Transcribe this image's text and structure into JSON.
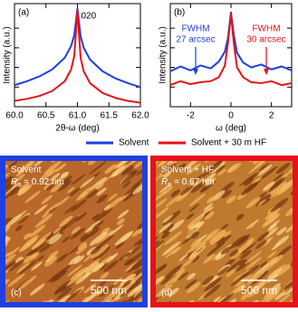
{
  "chart_data": [
    {
      "type": "line",
      "panel_label": "(a)",
      "annotation": "020",
      "x_label": "2θ-ω (deg)",
      "y_label": "Intensity (a.u.)",
      "x": [
        60.0,
        60.2,
        60.4,
        60.6,
        60.8,
        60.9,
        60.95,
        61.0,
        61.05,
        61.1,
        61.2,
        61.4,
        61.6,
        61.8,
        62.0
      ],
      "series": [
        {
          "name": "Solvent",
          "color": "#1f3fe0",
          "values": [
            2.2,
            2.6,
            3.1,
            3.8,
            5.0,
            6.2,
            7.3,
            10,
            7.2,
            6.0,
            4.8,
            3.6,
            2.9,
            2.4,
            2.0
          ]
        },
        {
          "name": "Solvent + 30 m HF",
          "color": "#e8101a",
          "values": [
            0.6,
            0.8,
            1.1,
            1.6,
            2.6,
            3.8,
            5.2,
            9.8,
            5.0,
            3.6,
            2.4,
            1.4,
            0.9,
            0.6,
            0.4
          ]
        }
      ],
      "xlim": [
        60.0,
        62.0
      ],
      "xticks": [
        {
          "value": 60,
          "label": "60.0"
        },
        60.5,
        {
          "value": 61,
          "label": "61.0"
        },
        61.5,
        {
          "value": 62,
          "label": "62.0"
        }
      ],
      "ylim": [
        0,
        10.5
      ],
      "yticks": [
        2,
        4,
        6,
        8
      ]
    },
    {
      "type": "line",
      "panel_label": "(b)",
      "x_label": "ω (deg)",
      "y_label": "Intensity (a.u.)",
      "x": [
        -3,
        -2.5,
        -2,
        -1.5,
        -1,
        -0.6,
        -0.3,
        -0.15,
        0,
        0.15,
        0.3,
        0.6,
        1,
        1.5,
        2,
        2.5,
        3
      ],
      "series": [
        {
          "color": "#1f3fe0",
          "values": [
            3.6,
            4.1,
            3.7,
            4.2,
            3.9,
            4.6,
            5.6,
            7.0,
            9.6,
            7.2,
            5.5,
            4.5,
            4.0,
            4.3,
            3.8,
            4.1,
            3.7
          ]
        },
        {
          "color": "#e8101a",
          "values": [
            2.2,
            2.6,
            2.3,
            2.5,
            2.6,
            3.0,
            4.2,
            6.5,
            9.4,
            6.3,
            4.0,
            3.0,
            2.5,
            2.4,
            2.6,
            2.2,
            2.4
          ]
        }
      ],
      "annotations": [
        {
          "lines": [
            "FWHM",
            "27 arcsec"
          ],
          "color": "#1f3fe0"
        },
        {
          "lines": [
            "FWHM",
            "30 arcsec"
          ],
          "color": "#e8101a"
        }
      ],
      "xlim": [
        -3,
        3
      ],
      "xticks": [
        -2,
        0,
        2
      ],
      "ylim": [
        0,
        10.5
      ],
      "yticks": [
        2,
        4,
        6,
        8
      ]
    }
  ],
  "images": [
    {
      "panel_label": "(c)",
      "sample": "Solvent",
      "symbol": "R",
      "subscript": "a",
      "roughness": "= 0.92 nm",
      "scale_bar": "500 nm",
      "border_color": "#1f3fe0"
    },
    {
      "panel_label": "(d)",
      "sample": "Solvent + HF",
      "symbol": "R",
      "subscript": "a",
      "roughness": "= 0.67 nm",
      "scale_bar": "500 nm",
      "border_color": "#e8101a"
    }
  ]
}
